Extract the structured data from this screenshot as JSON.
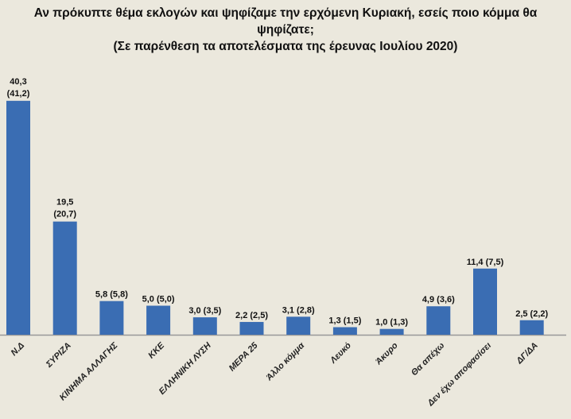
{
  "chart_data": {
    "type": "bar",
    "title": "Αν πρόκυπτε θέμα εκλογών και ψηφίζαμε την ερχόμενη Κυριακή, εσείς ποιο κόμμα θα ψηφίζατε;",
    "subtitle": "(Σε παρένθεση τα αποτελέσματα της έρευνας Ιουλίου 2020)",
    "categories": [
      "Ν.Δ",
      "ΣΥΡΙΖΑ",
      "ΚΙΝΗΜΑ ΑΛΛΑΓΗΣ",
      "ΚΚΕ",
      "ΕΛΛΗΝΙΚΗ ΛΥΣΗ",
      "ΜΕΡΑ 25",
      "Άλλο κόμμα",
      "Λευκό",
      "Άκυρο",
      "Θα απέχω",
      "Δεν έχω αποφασίσει",
      "ΔΓ/ΔΑ"
    ],
    "values": [
      40.3,
      19.5,
      5.8,
      5.0,
      3.0,
      2.2,
      3.1,
      1.3,
      1.0,
      4.9,
      11.4,
      2.5
    ],
    "previous_values": [
      41.2,
      20.7,
      5.8,
      5.0,
      3.5,
      2.5,
      2.8,
      1.5,
      1.3,
      3.6,
      7.5,
      2.2
    ],
    "data_labels": [
      "40,3 (41,2)",
      "19,5 (20,7)",
      "5,8 (5,8)",
      "5,0 (5,0)",
      "3,0 (3,5)",
      "2,2 (2,5)",
      "3,1 (2,8)",
      "1,3 (1,5)",
      "1,0 (1,3)",
      "4,9 (3,6)",
      "11,4 (7,5)",
      "2,5 (2,2)"
    ],
    "bar_color": "#3a6db3",
    "ylim": [
      0,
      42
    ],
    "grid": false
  }
}
